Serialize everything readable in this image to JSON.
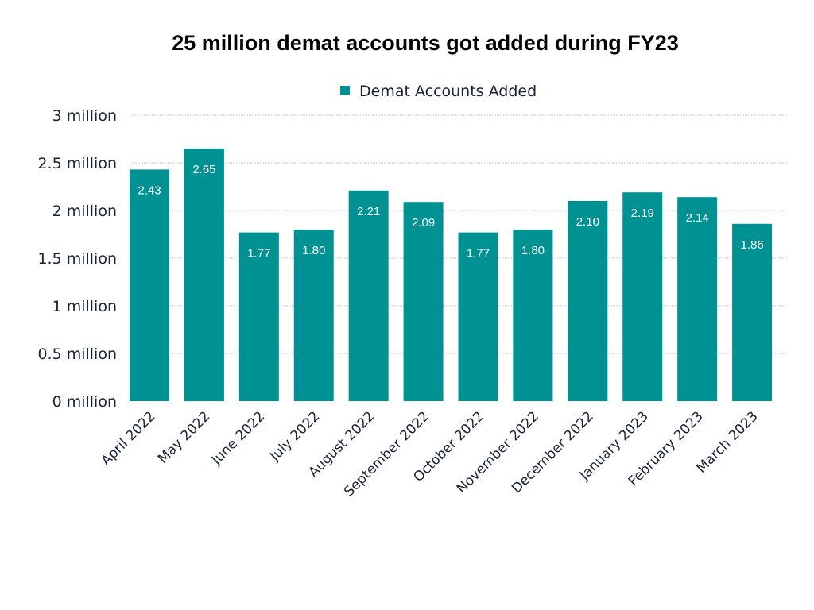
{
  "chart_data": {
    "type": "bar",
    "title": "25 million demat accounts got added during FY23",
    "categories": [
      "April 2022",
      "May 2022",
      "June 2022",
      "July 2022",
      "August 2022",
      "September 2022",
      "October 2022",
      "November 2022",
      "December 2022",
      "January 2023",
      "February 2023",
      "March 2023"
    ],
    "series": [
      {
        "name": "Demat Accounts Added",
        "values": [
          2.43,
          2.65,
          1.77,
          1.8,
          2.21,
          2.09,
          1.77,
          1.8,
          2.1,
          2.19,
          2.14,
          1.86
        ],
        "data_labels": [
          "2.43",
          "2.65",
          "1.77",
          "1.80",
          "2.21",
          "2.09",
          "1.77",
          "1.80",
          "2.10",
          "2.19",
          "2.14",
          "1.86"
        ],
        "color": "#009193"
      }
    ],
    "yticks": [
      0,
      0.5,
      1,
      1.5,
      2,
      2.5,
      3
    ],
    "ytick_labels": [
      "0 million",
      "0.5 million",
      "1 million",
      "1.5 million",
      "2 million",
      "2.5 million",
      "3 million"
    ],
    "ylim": [
      0,
      3
    ],
    "grid": true,
    "legend_position": "top-center"
  }
}
